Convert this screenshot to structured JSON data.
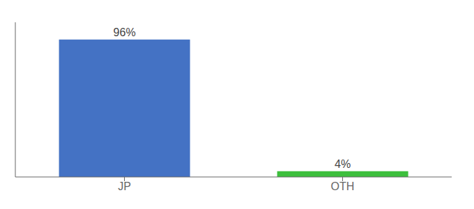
{
  "chart_data": {
    "type": "bar",
    "categories": [
      "JP",
      "OTH"
    ],
    "values": [
      96,
      4
    ],
    "value_labels": [
      "96%",
      "4%"
    ],
    "colors": [
      "#4472c4",
      "#3dbf3d"
    ],
    "ylim": [
      0,
      108
    ],
    "data_labels": true,
    "tick_labels": "x",
    "grid": false
  }
}
